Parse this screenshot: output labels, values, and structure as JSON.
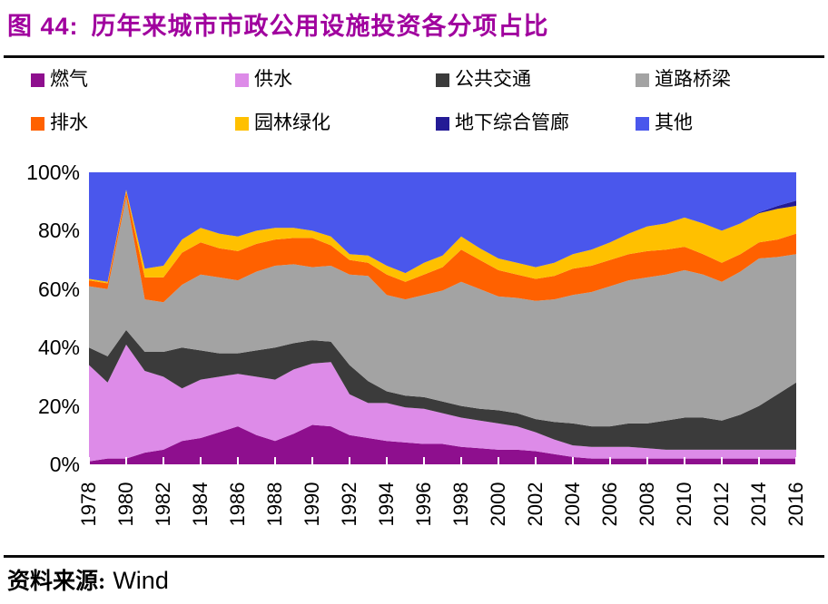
{
  "title": {
    "prefix": "图 44:",
    "text": "历年来城市市政公用设施投资各分项占比"
  },
  "legend": {
    "items": [
      {
        "label": "燃气",
        "color": "#8E0F8E"
      },
      {
        "label": "供水",
        "color": "#DD8BE8"
      },
      {
        "label": "公共交通",
        "color": "#3B3B3B"
      },
      {
        "label": "道路桥梁",
        "color": "#A3A3A3"
      },
      {
        "label": "排水",
        "color": "#FF6100"
      },
      {
        "label": "园林绿化",
        "color": "#FFC000"
      },
      {
        "label": "地下综合管廊",
        "color": "#241B96"
      },
      {
        "label": "其他",
        "color": "#4A57EC"
      }
    ]
  },
  "axes": {
    "y_ticks": [
      "100%",
      "80%",
      "60%",
      "40%",
      "20%",
      "0%"
    ],
    "x_ticks": [
      "1978",
      "1980",
      "1982",
      "1984",
      "1986",
      "1988",
      "1990",
      "1992",
      "1994",
      "1996",
      "1998",
      "2000",
      "2002",
      "2004",
      "2006",
      "2008",
      "2010",
      "2012",
      "2014",
      "2016"
    ]
  },
  "source": {
    "label": "资料来源:",
    "value": "Wind"
  },
  "chart_data": {
    "type": "area",
    "stacked": true,
    "unit": "%",
    "ylim": [
      0,
      100
    ],
    "grid": false,
    "legend_position": "top",
    "x": [
      1978,
      1979,
      1980,
      1981,
      1982,
      1983,
      1984,
      1985,
      1986,
      1987,
      1988,
      1989,
      1990,
      1991,
      1992,
      1993,
      1994,
      1995,
      1996,
      1997,
      1998,
      1999,
      2000,
      2001,
      2002,
      2003,
      2004,
      2005,
      2006,
      2007,
      2008,
      2009,
      2010,
      2011,
      2012,
      2013,
      2014,
      2015,
      2016
    ],
    "series": [
      {
        "name": "燃气",
        "color": "#8E0F8E",
        "values": [
          1,
          2,
          2,
          4,
          5,
          8,
          9,
          11,
          13,
          10,
          8,
          10.5,
          13.5,
          13,
          10,
          9,
          8,
          7.5,
          7,
          7,
          6,
          5.5,
          5,
          5,
          4.5,
          3.5,
          2.5,
          2,
          2,
          2,
          2,
          2,
          2,
          2,
          2,
          2,
          2,
          2,
          2
        ]
      },
      {
        "name": "供水",
        "color": "#DD8BE8",
        "values": [
          33,
          26,
          39,
          28,
          25,
          18,
          20,
          19,
          18,
          20,
          21,
          22,
          21,
          22,
          14,
          12,
          13,
          12,
          12,
          10.5,
          10,
          9.5,
          9,
          8,
          6.5,
          5,
          4,
          4,
          4,
          4,
          3.5,
          3,
          3,
          3,
          3,
          3,
          3,
          3,
          3
        ]
      },
      {
        "name": "公共交通",
        "color": "#3B3B3B",
        "values": [
          6,
          9,
          5,
          6.5,
          8.5,
          14,
          10,
          8,
          7,
          9,
          11,
          9,
          8,
          7,
          10,
          7.5,
          4,
          4,
          4,
          4,
          4,
          4,
          4.5,
          4.5,
          4.5,
          6,
          7.5,
          7,
          7,
          8,
          8.5,
          10,
          11,
          11,
          10,
          12,
          15,
          19,
          23
        ]
      },
      {
        "name": "道路桥梁",
        "color": "#A3A3A3",
        "values": [
          21,
          23,
          45.5,
          18,
          17,
          21.5,
          26,
          26,
          25,
          27,
          28,
          27,
          25,
          26,
          31,
          36,
          33,
          33,
          35,
          38,
          42.5,
          41,
          39,
          39.5,
          40.5,
          42,
          44,
          46,
          48,
          49,
          50,
          50,
          50.5,
          49,
          47.5,
          49,
          50.5,
          47,
          44
        ]
      },
      {
        "name": "排水",
        "color": "#FF6100",
        "values": [
          2,
          2,
          1.8,
          7.5,
          8.5,
          11,
          11,
          10,
          10,
          9.5,
          9,
          9,
          10,
          7,
          5,
          4.5,
          7,
          6,
          7,
          8,
          11,
          10,
          9,
          8,
          7.5,
          8,
          9,
          9,
          9,
          9,
          9,
          8.5,
          8,
          7,
          6.5,
          6,
          5.5,
          6,
          7
        ]
      },
      {
        "name": "园林绿化",
        "color": "#FFC000",
        "values": [
          0.5,
          0.5,
          0.7,
          3,
          4,
          4.5,
          5,
          5,
          5,
          4.5,
          4,
          3.5,
          2.5,
          3,
          2,
          2.5,
          3,
          3,
          4,
          4,
          4.5,
          4,
          4,
          4,
          4,
          4.5,
          5,
          5.5,
          6,
          7,
          8.5,
          9,
          10,
          10.5,
          11,
          10.5,
          10,
          10.5,
          9.5
        ]
      },
      {
        "name": "地下综合管廊",
        "color": "#241B96",
        "values": [
          0,
          0,
          0,
          0,
          0,
          0,
          0,
          0,
          0,
          0,
          0,
          0,
          0,
          0,
          0,
          0,
          0,
          0,
          0,
          0,
          0,
          0,
          0,
          0,
          0,
          0,
          0,
          0,
          0,
          0,
          0,
          0,
          0,
          0,
          0,
          0,
          0.3,
          1,
          1.8
        ]
      },
      {
        "name": "其他",
        "color": "#4A57EC",
        "values": [
          36.5,
          37.5,
          6,
          33,
          32,
          23,
          19,
          21,
          22,
          20,
          19,
          19,
          20,
          22,
          28,
          28.5,
          32,
          34.5,
          31,
          28.5,
          22,
          26,
          29.5,
          31,
          32.5,
          31,
          28,
          26.5,
          24,
          21,
          18.5,
          17.5,
          15.5,
          17.5,
          20,
          17.5,
          13.7,
          11.5,
          9.7
        ]
      }
    ]
  }
}
